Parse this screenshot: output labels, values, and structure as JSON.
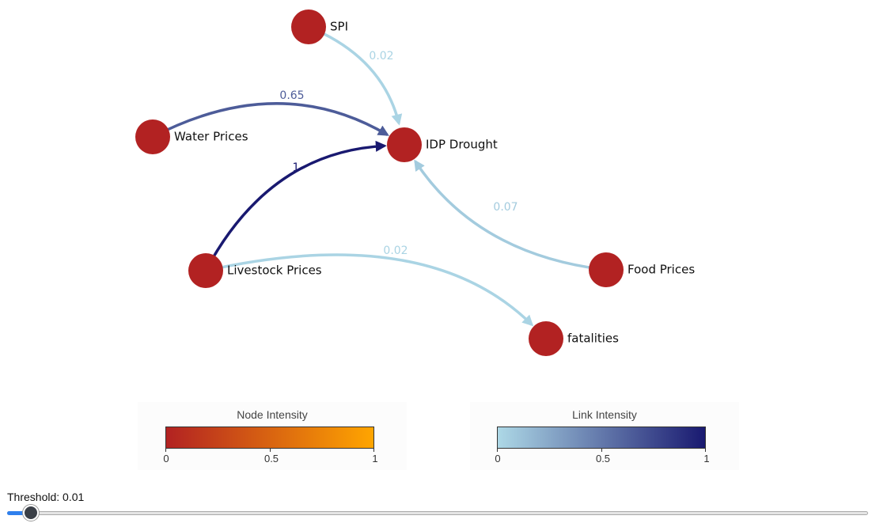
{
  "diagram": {
    "nodes": [
      {
        "id": "spi",
        "label": "SPI",
        "intensity": 0
      },
      {
        "id": "idp",
        "label": "IDP Drought",
        "intensity": 0
      },
      {
        "id": "water",
        "label": "Water Prices",
        "intensity": 0
      },
      {
        "id": "livestock",
        "label": "Livestock Prices",
        "intensity": 0
      },
      {
        "id": "food",
        "label": "Food Prices",
        "intensity": 0
      },
      {
        "id": "fatalities",
        "label": "fatalities",
        "intensity": 0
      }
    ],
    "edges": [
      {
        "id": "spi-idp",
        "source": "spi",
        "target": "idp",
        "weight": 0.02,
        "label": "0.02"
      },
      {
        "id": "water-idp",
        "source": "water",
        "target": "idp",
        "weight": 0.65,
        "label": "0.65"
      },
      {
        "id": "livestock-idp",
        "source": "livestock",
        "target": "idp",
        "weight": 1,
        "label": "1"
      },
      {
        "id": "food-idp",
        "source": "food",
        "target": "idp",
        "weight": 0.07,
        "label": "0.07"
      },
      {
        "id": "livestock-fatalities",
        "source": "livestock",
        "target": "fatalities",
        "weight": 0.02,
        "label": "0.02"
      }
    ]
  },
  "legends": {
    "node": {
      "title": "Node Intensity",
      "colors": [
        "#b22222",
        "#ffa500"
      ],
      "ticks": [
        "0",
        "0.5",
        "1"
      ]
    },
    "link": {
      "title": "Link Intensity",
      "colors": [
        "#add8e6",
        "#191970"
      ],
      "ticks": [
        "0",
        "0.5",
        "1"
      ]
    }
  },
  "threshold": {
    "label": "Threshold: 0.01",
    "value": 0.01,
    "min": 0,
    "max": 1
  }
}
